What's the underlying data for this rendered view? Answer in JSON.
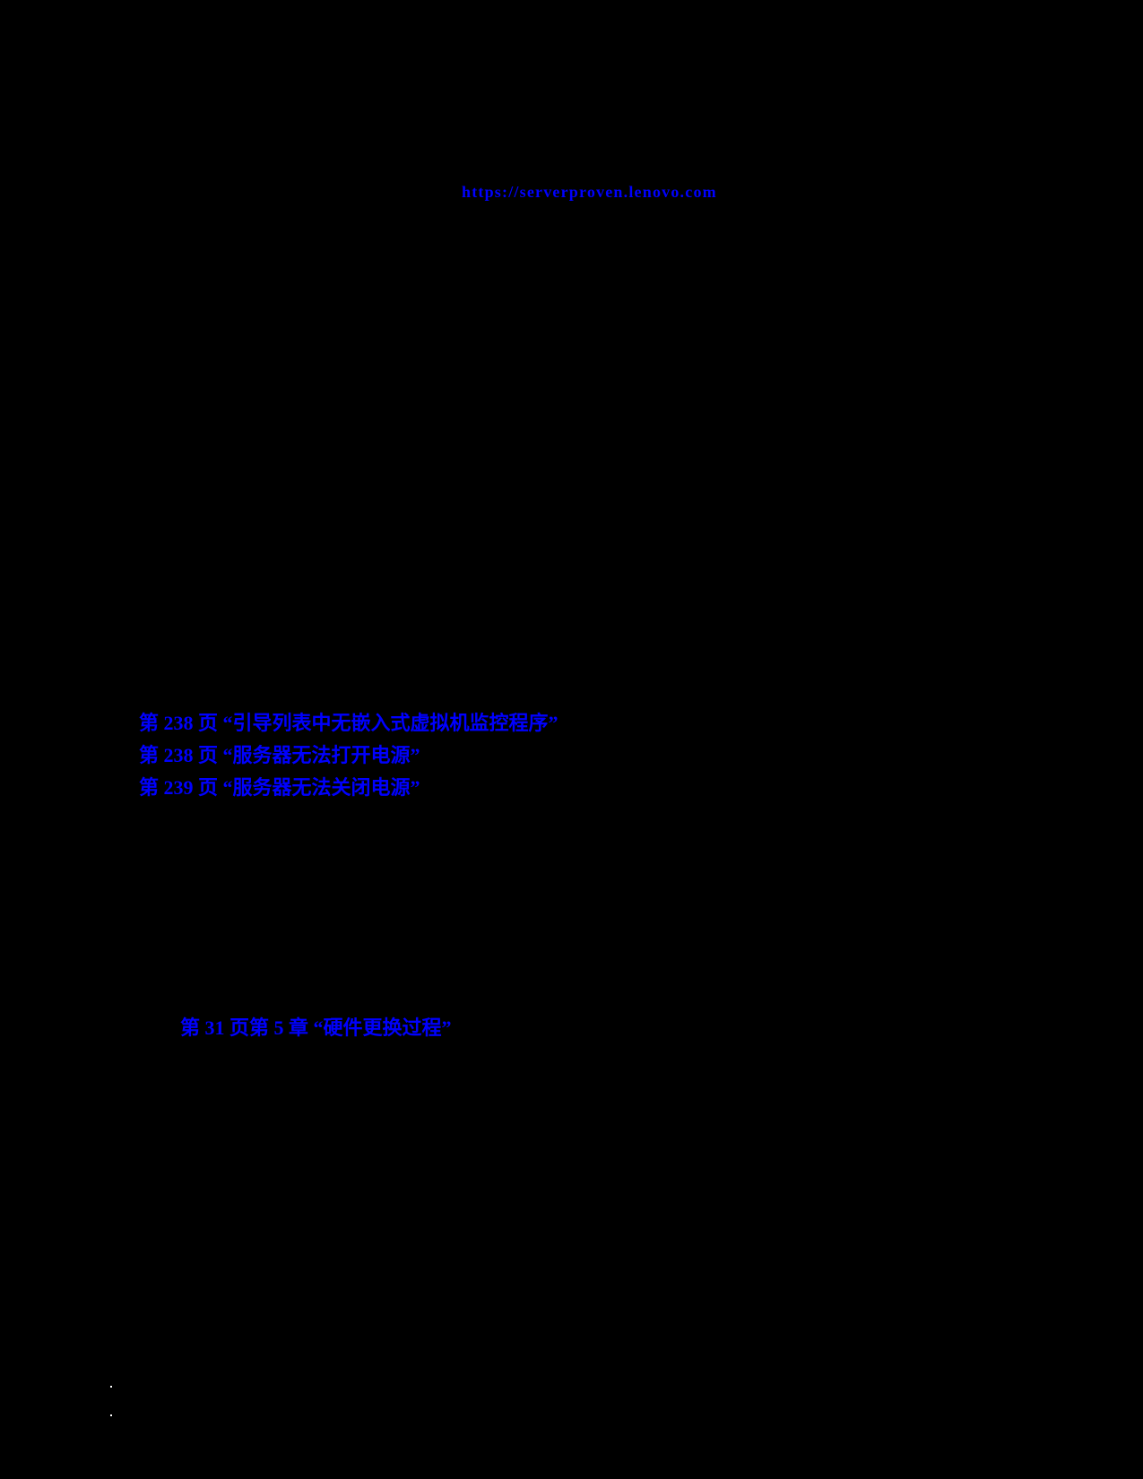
{
  "page": {
    "background_color": "#000000",
    "link_color": "#0000ff",
    "artifact_color": "#ffffff",
    "description": "Document page with only hyperlink text visible on black background"
  },
  "links": {
    "serverproven_url": {
      "text": "https://serverproven.lenovo.com"
    },
    "toc": [
      {
        "text": "第 238 页 “引导列表中无嵌入式虚拟机监控程序”"
      },
      {
        "text": "第 238 页 “服务器无法打开电源”"
      },
      {
        "text": "第 239 页 “服务器无法关闭电源”"
      }
    ],
    "chapter_ref": {
      "text": "第 31 页第 5 章 “硬件更换过程”"
    }
  },
  "artifacts": {
    "stray_dots_count": 2
  }
}
